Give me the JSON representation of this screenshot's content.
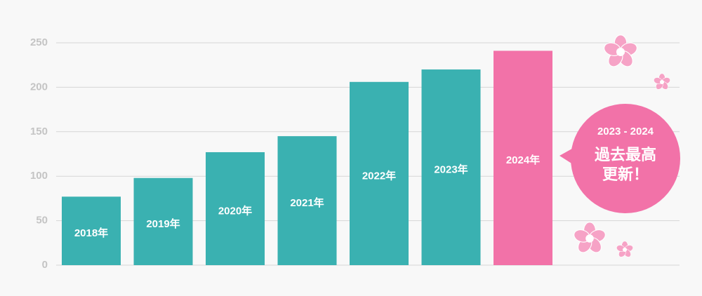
{
  "chart_data": {
    "type": "bar",
    "categories": [
      "2018年",
      "2019年",
      "2020年",
      "2021年",
      "2022年",
      "2023年",
      "2024年"
    ],
    "values": [
      77,
      98,
      127,
      145,
      206,
      220,
      241
    ],
    "colors": [
      "#3ab1b1",
      "#3ab1b1",
      "#3ab1b1",
      "#3ab1b1",
      "#3ab1b1",
      "#3ab1b1",
      "#f272a8"
    ],
    "ylim": [
      0,
      250
    ],
    "yticks": [
      0,
      50,
      100,
      150,
      200,
      250
    ],
    "grid": true,
    "annotation": {
      "period": "2023 - 2024",
      "lines": [
        "過去最高",
        "更新！"
      ],
      "color": "#f272a8"
    }
  }
}
